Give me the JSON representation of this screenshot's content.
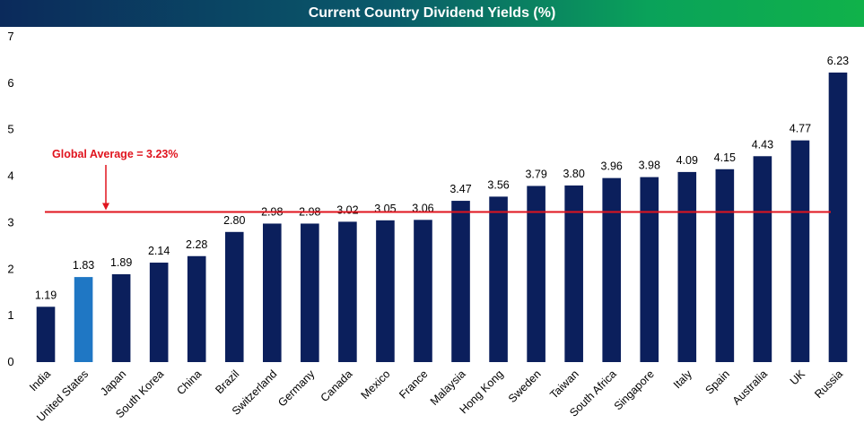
{
  "chart_data": {
    "type": "bar",
    "title": "Current Country Dividend Yields (%)",
    "categories": [
      "India",
      "United States",
      "Japan",
      "South Korea",
      "China",
      "Brazil",
      "Switzerland",
      "Germany",
      "Canada",
      "Mexico",
      "France",
      "Malaysia",
      "Hong Kong",
      "Sweden",
      "Taiwan",
      "South Africa",
      "Singapore",
      "Italy",
      "Spain",
      "Australia",
      "UK",
      "Russia"
    ],
    "values": [
      1.19,
      1.83,
      1.89,
      2.14,
      2.28,
      2.8,
      2.98,
      2.98,
      3.02,
      3.05,
      3.06,
      3.47,
      3.56,
      3.79,
      3.8,
      3.96,
      3.98,
      4.09,
      4.15,
      4.43,
      4.77,
      6.23
    ],
    "data_labels": [
      "1.19",
      "1.83",
      "1.89",
      "2.14",
      "2.28",
      "2.80",
      "2.98",
      "2.98",
      "3.02",
      "3.05",
      "3.06",
      "3.47",
      "3.56",
      "3.79",
      "3.80",
      "3.96",
      "3.98",
      "4.09",
      "4.15",
      "4.43",
      "4.77",
      "6.23"
    ],
    "highlight_category": "United States",
    "ylim": [
      0,
      7
    ],
    "yticks": [
      0,
      1,
      2,
      3,
      4,
      5,
      6,
      7
    ],
    "xlabel": "",
    "ylabel": "",
    "grid": false,
    "legend": "none",
    "reference_line": {
      "value": 3.23,
      "label": "Global Average = 3.23%"
    },
    "colors": {
      "bar": "#0b1f5c",
      "highlight": "#1f77c4",
      "reference": "#e0141e"
    }
  }
}
